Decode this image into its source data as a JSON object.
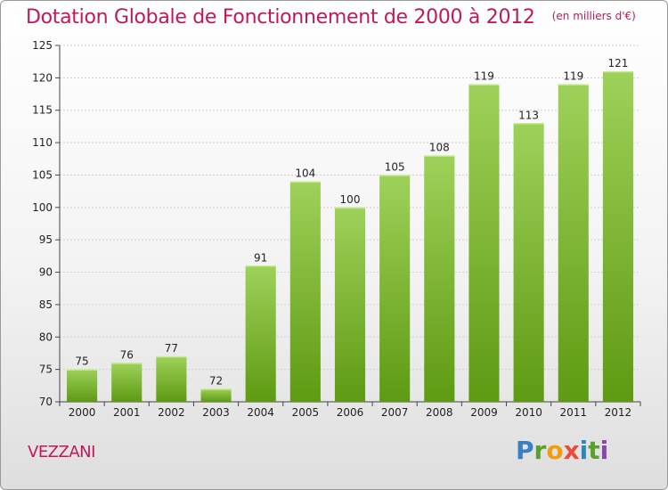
{
  "title": "Dotation Globale de Fonctionnement de 2000 à 2012",
  "subtitle": "(en milliers d'€)",
  "commune": "VEZZANI",
  "logo": {
    "letters": [
      "P",
      "r",
      "o",
      "x",
      "i",
      "t",
      "i"
    ]
  },
  "colors": {
    "title": "#c2185b",
    "bar_light": "#9ed15a",
    "bar_dark": "#5e9a12",
    "logo": [
      "#3a7fc1",
      "#5aa02c",
      "#f39c12",
      "#e74c3c",
      "#2e86c1",
      "#5aa02c",
      "#8e44ad"
    ]
  },
  "chart_data": {
    "type": "bar",
    "categories": [
      "2000",
      "2001",
      "2002",
      "2003",
      "2004",
      "2005",
      "2006",
      "2007",
      "2008",
      "2009",
      "2010",
      "2011",
      "2012"
    ],
    "values": [
      75,
      76,
      77,
      72,
      91,
      104,
      100,
      105,
      108,
      119,
      113,
      119,
      121
    ],
    "ylim": [
      70,
      125
    ],
    "yticks": [
      70,
      75,
      80,
      85,
      90,
      95,
      100,
      105,
      110,
      115,
      120,
      125
    ],
    "grid": true,
    "legend": "none"
  }
}
